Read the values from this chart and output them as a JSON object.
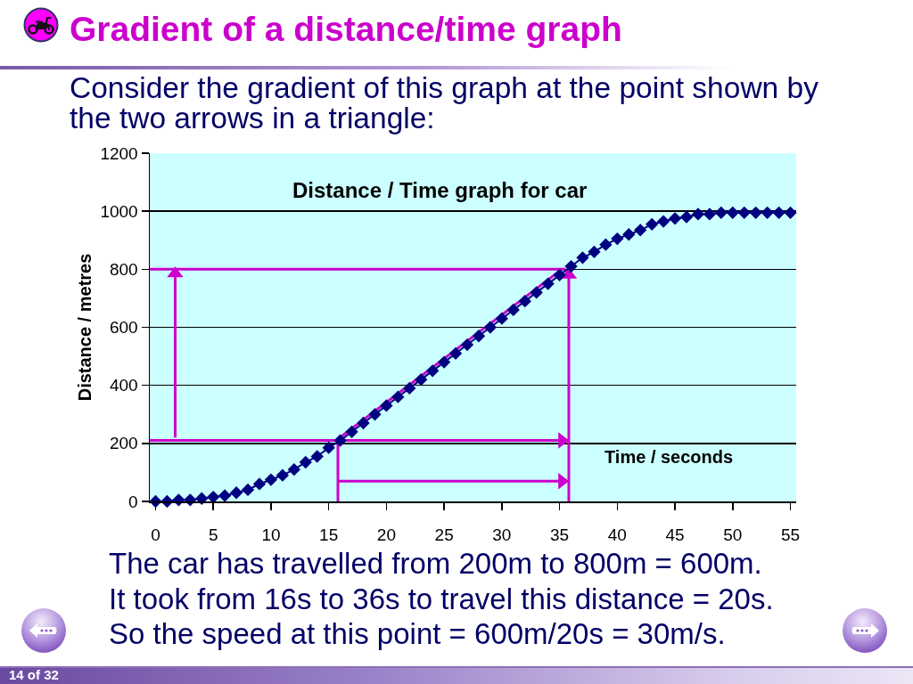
{
  "chart_data": {
    "type": "line",
    "title": "Gradient of a distance/time graph",
    "subtitle": "Consider the gradient of this graph at the point shown by the two arrows in a triangle:",
    "xlabel": "Time / seconds",
    "ylabel": "Distance / metres",
    "annotations": [
      "Distance / Time graph for car",
      "The car has travelled from 200m to 800m = 600m.",
      "It took from 16s to 36s to travel this distance = 20s.",
      "So the speed at this point = 600m/20s = 30m/s.",
      "14 of 32"
    ],
    "x": [
      0,
      1,
      2,
      3,
      4,
      5,
      6,
      7,
      8,
      9,
      10,
      11,
      12,
      13,
      14,
      15,
      16,
      17,
      18,
      19,
      20,
      21,
      22,
      23,
      24,
      25,
      26,
      27,
      28,
      29,
      30,
      31,
      32,
      33,
      34,
      35,
      36,
      37,
      38,
      39,
      40,
      41,
      42,
      43,
      44,
      45,
      46,
      47,
      48,
      49,
      50,
      51,
      52,
      53,
      54,
      55
    ],
    "series": [
      {
        "color": "#000080",
        "values": [
          0,
          0,
          5,
          5,
          10,
          15,
          20,
          30,
          40,
          60,
          75,
          90,
          110,
          135,
          155,
          185,
          210,
          240,
          270,
          300,
          330,
          360,
          390,
          420,
          450,
          480,
          510,
          540,
          570,
          600,
          630,
          660,
          690,
          720,
          750,
          780,
          810,
          840,
          860,
          885,
          905,
          920,
          935,
          955,
          965,
          975,
          980,
          990,
          990,
          995,
          995,
          995,
          995,
          995,
          995,
          995
        ]
      },
      {
        "color": "#cc00cc",
        "marker": "none",
        "x": [
          15.8,
          35.2
        ],
        "values": [
          215,
          800
        ]
      },
      {
        "color": "#cc00cc",
        "marker": "none",
        "x": [
          -0.5,
          35.5
        ],
        "values": [
          800,
          800
        ]
      },
      {
        "color": "#cc00cc",
        "marker": "triangle",
        "x": [
          -0.5,
          35.2
        ],
        "values": [
          210,
          210
        ]
      },
      {
        "color": "#cc00cc",
        "marker": "triangle",
        "x": [
          35.8,
          35.8
        ],
        "values": [
          0,
          780
        ]
      },
      {
        "color": "#cc00cc",
        "marker": "none",
        "x": [
          15.8,
          15.8
        ],
        "values": [
          0,
          210
        ]
      },
      {
        "color": "#cc00cc",
        "marker": "triangle",
        "x": [
          1.7,
          1.7
        ],
        "values": [
          220,
          785
        ]
      },
      {
        "color": "#cc00cc",
        "marker": "triangle",
        "x": [
          15.8,
          35.2
        ],
        "values": [
          70,
          70
        ]
      }
    ],
    "marker": "diamond",
    "line_style": "solid",
    "xlim": [
      -0.5,
      55.5
    ],
    "xticks": [
      0,
      5,
      10,
      15,
      20,
      25,
      30,
      35,
      40,
      45,
      50,
      55
    ],
    "ylim": [
      0,
      1200
    ],
    "yticks": [
      0,
      200,
      400,
      600,
      800,
      1000,
      1200
    ],
    "grid": "y"
  }
}
